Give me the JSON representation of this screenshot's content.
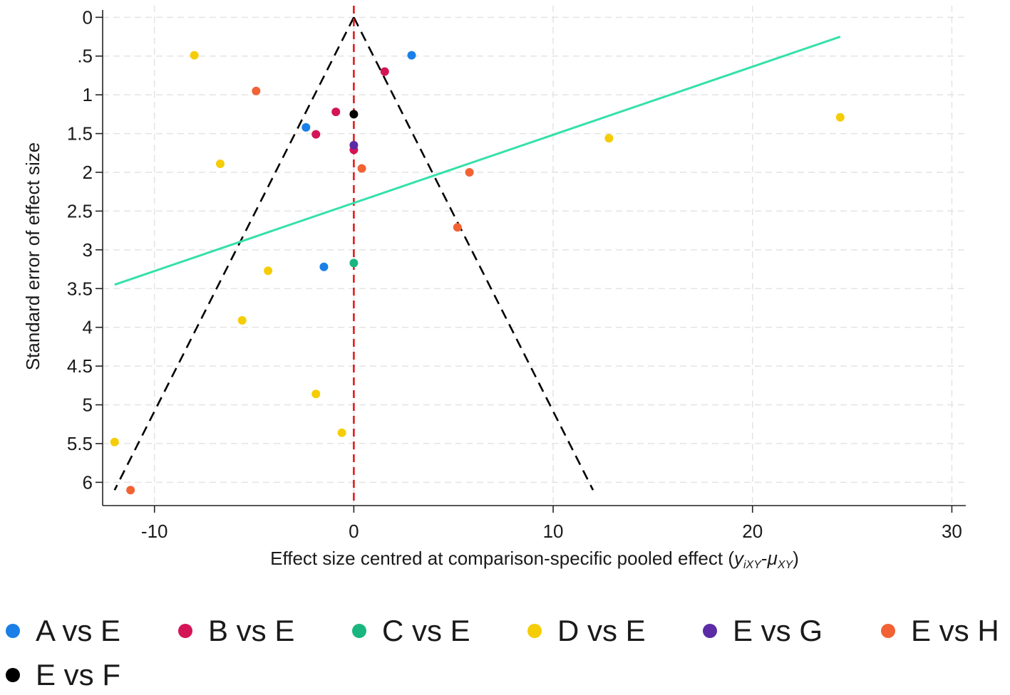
{
  "chart_data": {
    "type": "scatter",
    "title": "",
    "xlabel": "Effect size centred at comparison-specific pooled effect",
    "xlabel_math": {
      "open": " (",
      "y": "y",
      "y_sub": "iXY",
      "dash": "-",
      "mu": "μ",
      "mu_sub": "XY",
      "close": ")"
    },
    "ylabel": "Standard error of effect size",
    "xlim": [
      -12.6,
      30.7
    ],
    "ylim": [
      6.3,
      -0.15
    ],
    "y_reversed": true,
    "grid": true,
    "xticks": [
      -10,
      0,
      10,
      20,
      30
    ],
    "xtick_labels": [
      "-10",
      "0",
      "10",
      "20",
      "30"
    ],
    "yticks": [
      0,
      0.5,
      1,
      1.5,
      2,
      2.5,
      3,
      3.5,
      4,
      4.5,
      5,
      5.5,
      6
    ],
    "ytick_labels": [
      "0",
      ".5",
      "1",
      "1.5",
      "2",
      "2.5",
      "3",
      "3.5",
      "4",
      "4.5",
      "5",
      "5.5",
      "6"
    ],
    "legend_position": "bottom",
    "series": [
      {
        "name": "A vs E",
        "color": "#1a7fe6",
        "points": [
          [
            2.9,
            0.49
          ],
          [
            -2.4,
            1.42
          ],
          [
            -1.5,
            3.22
          ]
        ]
      },
      {
        "name": "B vs E",
        "color": "#d41456",
        "points": [
          [
            1.55,
            0.7
          ],
          [
            -0.9,
            1.22
          ],
          [
            -1.9,
            1.51
          ],
          [
            0.0,
            1.71
          ]
        ]
      },
      {
        "name": "C vs E",
        "color": "#1ab67f",
        "points": [
          [
            0.0,
            3.17
          ]
        ]
      },
      {
        "name": "D vs E",
        "color": "#f5cd05",
        "points": [
          [
            -8.0,
            0.49
          ],
          [
            24.4,
            1.29
          ],
          [
            12.8,
            1.56
          ],
          [
            -6.7,
            1.89
          ],
          [
            -4.3,
            3.27
          ],
          [
            -5.6,
            3.91
          ],
          [
            -1.9,
            4.86
          ],
          [
            -0.6,
            5.36
          ],
          [
            -12.0,
            5.48
          ]
        ]
      },
      {
        "name": "E vs G",
        "color": "#5b2ca6",
        "points": [
          [
            0.0,
            1.65
          ]
        ]
      },
      {
        "name": "E vs H",
        "color": "#f26234",
        "points": [
          [
            -4.9,
            0.95
          ],
          [
            0.4,
            1.95
          ],
          [
            5.8,
            2.0
          ],
          [
            5.2,
            2.71
          ],
          [
            -11.2,
            6.1
          ]
        ]
      },
      {
        "name": "E vs F",
        "color": "#000000",
        "points": [
          [
            0.0,
            1.25
          ]
        ]
      }
    ],
    "lines": [
      {
        "name": "pseudo-confidence-limit-left",
        "style": "dashed",
        "color": "#000000",
        "points": [
          [
            0,
            0
          ],
          [
            -12.0,
            6.1
          ]
        ]
      },
      {
        "name": "pseudo-confidence-limit-right",
        "style": "dashed",
        "color": "#000000",
        "points": [
          [
            0,
            0
          ],
          [
            12.0,
            6.1
          ]
        ]
      },
      {
        "name": "null-effect-line",
        "style": "dashed",
        "color": "#e01b1b",
        "points": [
          [
            0,
            -0.15
          ],
          [
            0,
            6.3
          ]
        ]
      },
      {
        "name": "regression-line",
        "style": "solid",
        "color": "#35e0aa",
        "points": [
          [
            -12.0,
            3.45
          ],
          [
            24.4,
            0.25
          ]
        ]
      }
    ]
  },
  "legend": {
    "items": [
      {
        "label": "A vs E",
        "color": "#1a7fe6"
      },
      {
        "label": "B vs E",
        "color": "#d41456"
      },
      {
        "label": "C vs E",
        "color": "#1ab67f"
      },
      {
        "label": "D vs E",
        "color": "#f5cd05"
      },
      {
        "label": "E vs G",
        "color": "#5b2ca6"
      },
      {
        "label": "E vs H",
        "color": "#f26234"
      },
      {
        "label": "E vs F",
        "color": "#000000"
      }
    ]
  }
}
